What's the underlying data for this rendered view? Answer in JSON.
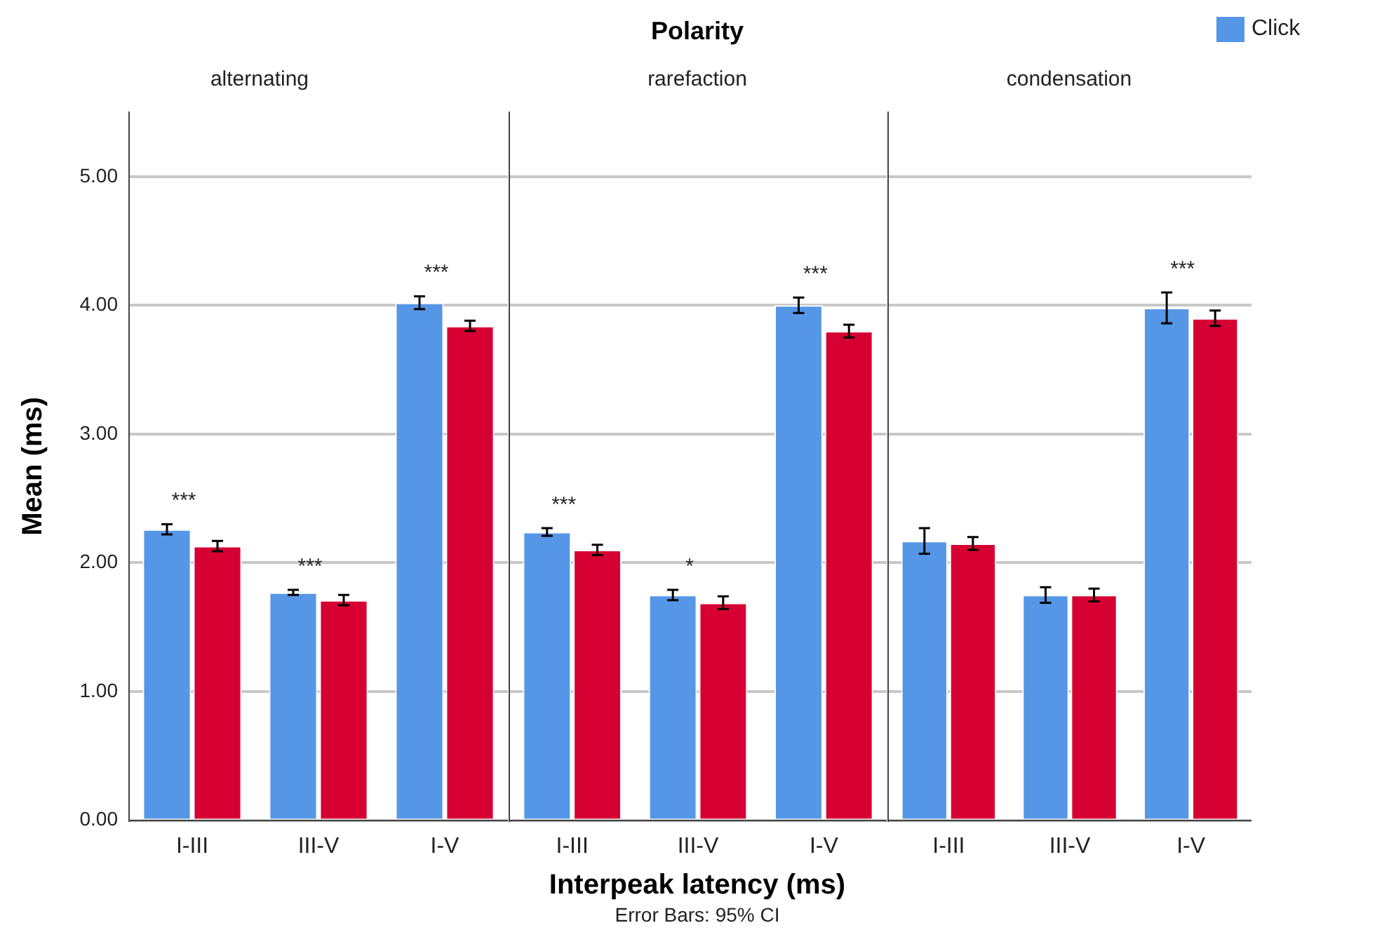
{
  "chart_data": [
    {
      "type": "bar",
      "title": "alternating",
      "ylabel": "Mean (ms)",
      "categories": [
        "I-III",
        "III-V",
        "I-V"
      ],
      "series": [
        {
          "color": "#5596e6",
          "values": [
            2.26,
            1.77,
            4.02
          ],
          "errors": [
            0.04,
            0.02,
            0.05
          ]
        },
        {
          "color": "#d70033",
          "values": [
            2.13,
            1.71,
            3.84
          ],
          "errors": [
            0.04,
            0.04,
            0.04
          ]
        }
      ],
      "annotations": [
        "***",
        "***",
        "***"
      ],
      "ylim": [
        0,
        5.5
      ],
      "yticks": [
        {
          "value": 0,
          "label": "0.00"
        },
        {
          "value": 1,
          "label": "1.00"
        },
        {
          "value": 2,
          "label": "2.00"
        },
        {
          "value": 3,
          "label": "3.00"
        },
        {
          "value": 4,
          "label": "4.00"
        },
        {
          "value": 5,
          "label": "5.00"
        }
      ],
      "grid": "y"
    },
    {
      "type": "bar",
      "title": "Polarity",
      "subtitle": "rarefaction",
      "xlabel": "Interpeak latency (ms)",
      "categories": [
        "I-III",
        "III-V",
        "I-V"
      ],
      "series": [
        {
          "color": "#5596e6",
          "values": [
            2.24,
            1.75,
            4.0
          ],
          "errors": [
            0.03,
            0.04,
            0.06
          ]
        },
        {
          "color": "#d70033",
          "values": [
            2.1,
            1.69,
            3.8
          ],
          "errors": [
            0.04,
            0.05,
            0.05
          ]
        }
      ],
      "annotations": [
        "***",
        "*",
        "***",
        "Error Bars: 95% CI"
      ],
      "ylim": [
        0,
        5.5
      ],
      "yticks": [
        0,
        1,
        2,
        3,
        4,
        5
      ],
      "grid": "y",
      "tick_labels": "x"
    },
    {
      "type": "bar",
      "title": "condensation",
      "categories": [
        "I-III",
        "III-V",
        "I-V"
      ],
      "series": [
        {
          "name": "Click",
          "color": "#5596e6",
          "values": [
            2.17,
            1.75,
            3.98
          ],
          "errors": [
            0.1,
            0.06,
            0.12
          ]
        },
        {
          "color": "#d70033",
          "values": [
            2.15,
            1.75,
            3.9
          ],
          "errors": [
            0.05,
            0.05,
            0.06
          ]
        }
      ],
      "annotations": [
        "***"
      ],
      "ylim": [
        0,
        5.5
      ],
      "yticks": [
        0,
        1,
        2,
        3,
        4,
        5
      ],
      "grid": "y",
      "tick_labels": "x",
      "legend": "top right"
    }
  ]
}
